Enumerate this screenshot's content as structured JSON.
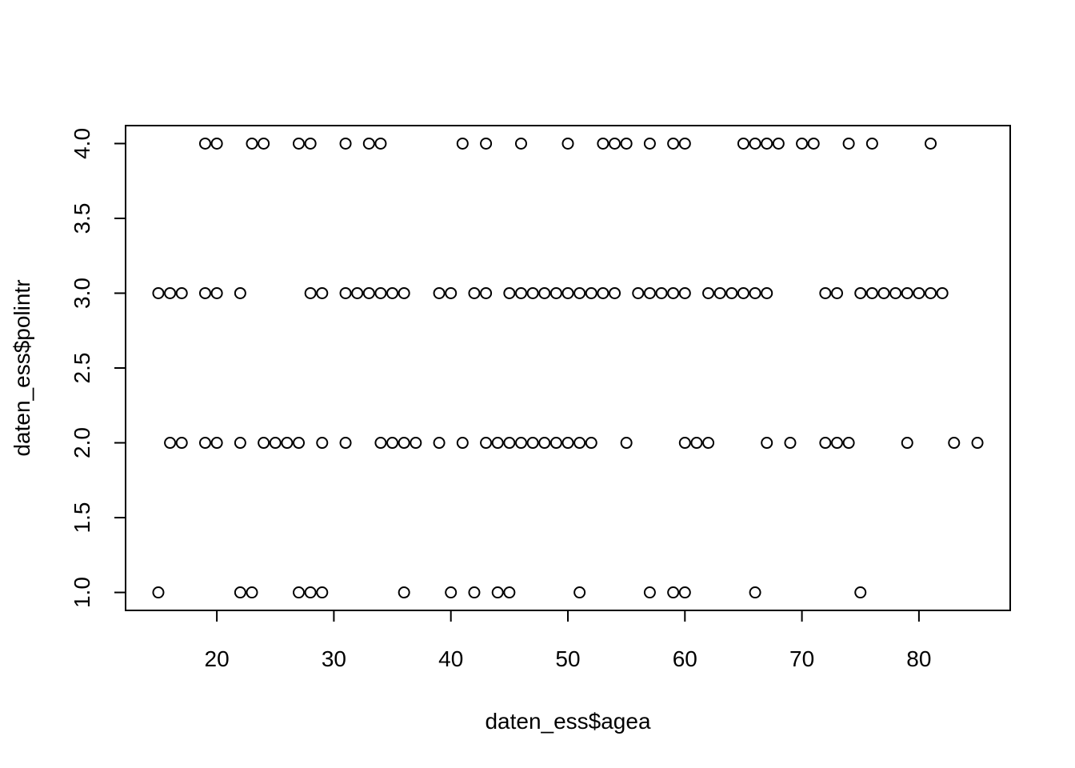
{
  "chart_data": {
    "type": "scatter",
    "title": "",
    "xlabel": "daten_ess$agea",
    "ylabel": "daten_ess$polintr",
    "xlim": [
      12.2,
      87.8
    ],
    "ylim": [
      0.88,
      4.12
    ],
    "x_ticks": [
      20,
      30,
      40,
      50,
      60,
      70,
      80
    ],
    "x_tick_labels": [
      "20",
      "30",
      "40",
      "50",
      "60",
      "70",
      "80"
    ],
    "y_ticks": [
      1.0,
      1.5,
      2.0,
      2.5,
      3.0,
      3.5,
      4.0
    ],
    "y_tick_labels": [
      "1.0",
      "1.5",
      "2.0",
      "2.5",
      "3.0",
      "3.5",
      "4.0"
    ],
    "grid": false,
    "legend": "none",
    "marker": "open-circle",
    "series": [
      {
        "points": [
          {
            "y": 4,
            "x": [
              19,
              20,
              23,
              24,
              27,
              28,
              31,
              33,
              34,
              41,
              43,
              46,
              50,
              53,
              54,
              55,
              57,
              59,
              60,
              65,
              66,
              67,
              68,
              70,
              71,
              74,
              76,
              81
            ]
          },
          {
            "y": 3,
            "x": [
              15,
              16,
              17,
              19,
              20,
              22,
              28,
              29,
              31,
              32,
              33,
              34,
              35,
              36,
              39,
              40,
              42,
              43,
              45,
              46,
              47,
              48,
              49,
              50,
              51,
              52,
              53,
              54,
              56,
              57,
              58,
              59,
              60,
              62,
              63,
              64,
              65,
              66,
              67,
              72,
              73,
              75,
              76,
              77,
              78,
              79,
              80,
              81,
              82
            ]
          },
          {
            "y": 2,
            "x": [
              16,
              17,
              19,
              20,
              22,
              24,
              25,
              26,
              27,
              29,
              31,
              34,
              35,
              36,
              37,
              39,
              41,
              43,
              44,
              45,
              46,
              47,
              48,
              49,
              50,
              51,
              52,
              55,
              60,
              61,
              62,
              67,
              69,
              72,
              73,
              74,
              79,
              83,
              85
            ]
          },
          {
            "y": 1,
            "x": [
              15,
              22,
              23,
              27,
              28,
              29,
              36,
              40,
              42,
              44,
              45,
              51,
              57,
              59,
              60,
              66,
              75
            ]
          }
        ]
      }
    ]
  }
}
